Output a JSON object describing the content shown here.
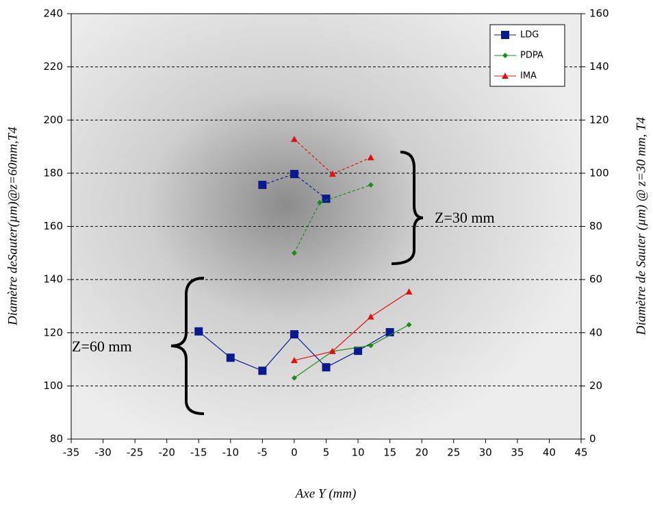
{
  "chart_data": {
    "type": "line",
    "xlabel": "Axe Y (mm)",
    "ylabel": "Diamètre deSauter(µm)@z=60mm,T4",
    "y2label": "Diamètre de Sauter (µm) @ z=30 mm, T4",
    "xlim": [
      -35,
      45
    ],
    "xticks": [
      -35,
      -30,
      -25,
      -20,
      -15,
      -10,
      -5,
      0,
      5,
      10,
      15,
      20,
      25,
      30,
      35,
      40,
      45
    ],
    "ylim": [
      80,
      240
    ],
    "yticks": [
      80,
      100,
      120,
      140,
      160,
      180,
      200,
      220,
      240
    ],
    "y2lim": [
      0,
      160
    ],
    "y2ticks": [
      0,
      20,
      40,
      60,
      80,
      100,
      120,
      140,
      160
    ],
    "grid": true,
    "legend": "upper right",
    "annotations": [
      "Z=30 mm",
      "Z=60 mm"
    ],
    "series": [
      {
        "name": "LDG",
        "color": "#0a1a8c",
        "marker": "square",
        "dash": false,
        "x": [
          -15,
          -10,
          -5,
          0,
          5,
          10,
          15
        ],
        "values": [
          120.5,
          110.6,
          105.7,
          119.4,
          107,
          113.2,
          120.2
        ]
      },
      {
        "name": "PDPA",
        "color": "#1a8c1a",
        "marker": "diamond",
        "dash": false,
        "x": [
          0,
          6,
          12,
          18
        ],
        "values": [
          103,
          113,
          115.2,
          123
        ]
      },
      {
        "name": "IMA",
        "color": "#e01010",
        "marker": "triangle",
        "dash": false,
        "x": [
          0,
          6,
          12,
          18
        ],
        "values": [
          109.6,
          113,
          126,
          135.4
        ]
      },
      {
        "color": "#0a1a8c",
        "marker": "square",
        "dash": true,
        "axis": "y2",
        "x": [
          -5,
          0,
          5
        ],
        "values": [
          95.6,
          99.7,
          90.4
        ]
      },
      {
        "color": "#1a8c1a",
        "marker": "diamond",
        "dash": true,
        "axis": "y2",
        "x": [
          0,
          4,
          12
        ],
        "values": [
          70,
          89,
          95.6
        ]
      },
      {
        "color": "#e01010",
        "marker": "triangle",
        "dash": true,
        "axis": "y2",
        "x": [
          0,
          6,
          12
        ],
        "values": [
          112.8,
          99.7,
          105.9
        ]
      }
    ]
  }
}
